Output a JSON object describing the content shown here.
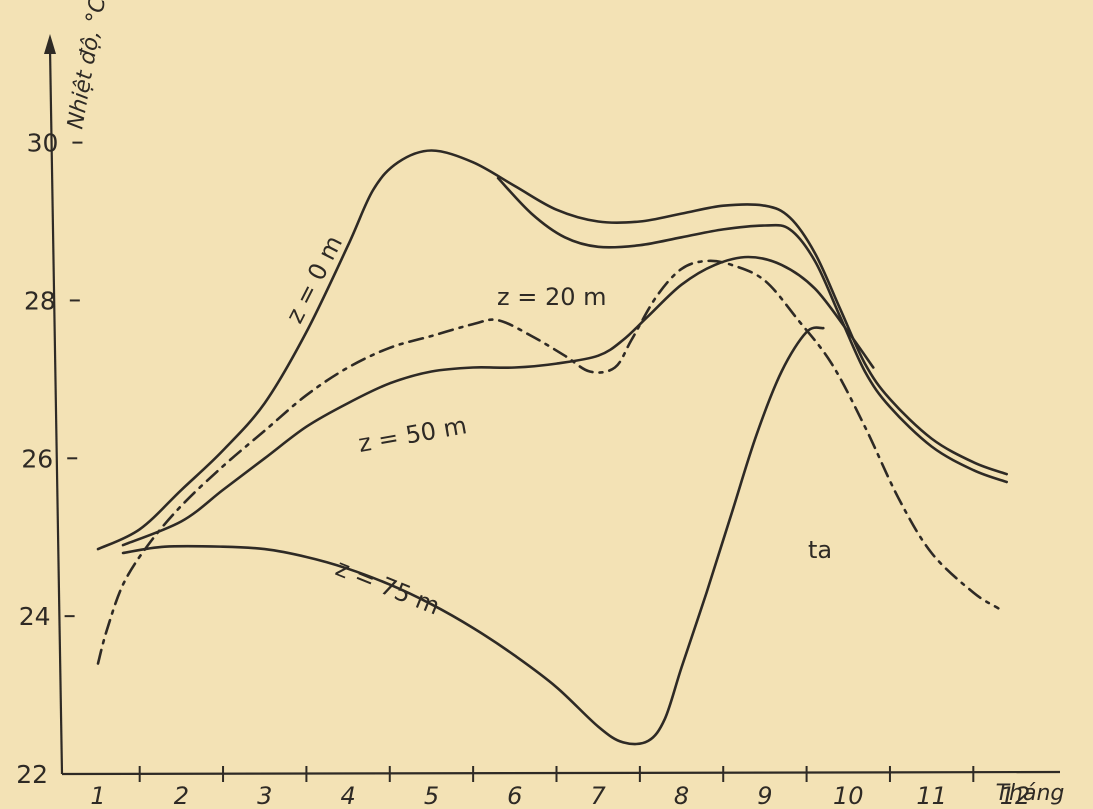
{
  "chart_data": {
    "type": "line",
    "title": "",
    "xlabel": "Tháng",
    "ylabel": "Nhiệt độ, °C",
    "x_ticks": [
      "1",
      "2",
      "3",
      "4",
      "5",
      "6",
      "7",
      "8",
      "9",
      "10",
      "11",
      "12"
    ],
    "y_ticks": [
      22,
      24,
      26,
      28,
      30
    ],
    "xlim": [
      1,
      12
    ],
    "ylim": [
      22,
      31.3
    ],
    "grid": false,
    "legend": "none",
    "series": [
      {
        "name": "z = 0 m",
        "style": "solid",
        "x": [
          1.0,
          1.5,
          2.0,
          2.5,
          3.0,
          3.5,
          4.0,
          4.3,
          4.6,
          5.0,
          5.5,
          6.0,
          6.5,
          7.0,
          7.5,
          8.0,
          8.5,
          9.0,
          9.3,
          9.6,
          9.9,
          10.2,
          10.5,
          11.0,
          11.5,
          11.9
        ],
        "y": [
          24.85,
          25.1,
          25.6,
          26.1,
          26.7,
          27.6,
          28.7,
          29.4,
          29.75,
          29.9,
          29.75,
          29.45,
          29.15,
          29.0,
          29.0,
          29.1,
          29.2,
          29.2,
          29.05,
          28.6,
          27.9,
          27.2,
          26.75,
          26.25,
          25.95,
          25.8
        ]
      },
      {
        "name": "z = 20 m",
        "style": "solid",
        "x": [
          5.8,
          6.2,
          6.6,
          7.0,
          7.5,
          8.0,
          8.5,
          9.0,
          9.3,
          9.6,
          9.9,
          10.2,
          10.5,
          11.0,
          11.5,
          11.9
        ],
        "y": [
          29.55,
          29.1,
          28.8,
          28.68,
          28.7,
          28.8,
          28.9,
          28.95,
          28.9,
          28.5,
          27.8,
          27.1,
          26.65,
          26.15,
          25.85,
          25.7
        ]
      },
      {
        "name": "z = 50 m",
        "style": "solid",
        "x": [
          1.3,
          2.0,
          2.5,
          3.0,
          3.5,
          4.0,
          4.5,
          5.0,
          5.5,
          6.0,
          6.5,
          7.0,
          7.3,
          7.6,
          8.0,
          8.4,
          8.8,
          9.2,
          9.6,
          10.0,
          10.3
        ],
        "y": [
          24.9,
          25.2,
          25.6,
          26.0,
          26.4,
          26.7,
          26.95,
          27.1,
          27.15,
          27.15,
          27.2,
          27.3,
          27.5,
          27.8,
          28.2,
          28.45,
          28.55,
          28.45,
          28.15,
          27.6,
          27.15
        ]
      },
      {
        "name": "z = 75 m",
        "style": "solid",
        "x": [
          1.3,
          1.8,
          2.5,
          3.0,
          3.5,
          4.0,
          4.5,
          5.0,
          5.5,
          6.0,
          6.5,
          7.0,
          7.3,
          7.6,
          7.8,
          8.0,
          8.3,
          8.6,
          8.9,
          9.2,
          9.5,
          9.7
        ],
        "y": [
          24.8,
          24.88,
          24.88,
          24.85,
          24.75,
          24.6,
          24.4,
          24.15,
          23.85,
          23.5,
          23.1,
          22.6,
          22.4,
          22.42,
          22.7,
          23.35,
          24.3,
          25.3,
          26.3,
          27.1,
          27.6,
          27.65
        ]
      },
      {
        "name": "ta",
        "style": "dashdot",
        "x": [
          1.0,
          1.1,
          1.3,
          1.6,
          2.0,
          2.5,
          3.0,
          3.5,
          4.0,
          4.5,
          5.0,
          5.5,
          5.8,
          6.2,
          6.6,
          6.9,
          7.2,
          7.4,
          7.7,
          8.0,
          8.3,
          8.6,
          9.0,
          9.4,
          9.8,
          10.2,
          10.6,
          11.0,
          11.5,
          11.8
        ],
        "y": [
          23.4,
          23.8,
          24.4,
          24.9,
          25.4,
          25.9,
          26.35,
          26.8,
          27.15,
          27.4,
          27.55,
          27.7,
          27.75,
          27.55,
          27.3,
          27.1,
          27.15,
          27.5,
          28.05,
          28.4,
          28.5,
          28.45,
          28.25,
          27.75,
          27.2,
          26.4,
          25.5,
          24.8,
          24.3,
          24.1
        ]
      }
    ]
  }
}
